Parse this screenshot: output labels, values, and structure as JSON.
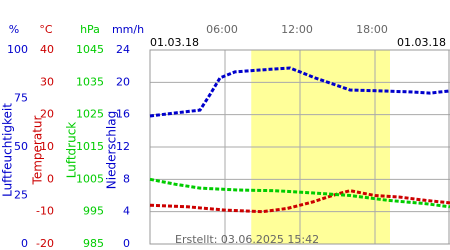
{
  "chart_data": {
    "type": "line",
    "date_left": "01.03.18",
    "date_right": "01.03.18",
    "footer": "Erstellt: 03.06.2025 15:42",
    "xlim": [
      0,
      24
    ],
    "xticks": [
      {
        "value": 6,
        "label": "06:00"
      },
      {
        "value": 12,
        "label": "12:00"
      },
      {
        "value": 18,
        "label": "18:00"
      }
    ],
    "shaded_span": [
      8.1,
      19.2
    ],
    "grid": true,
    "axes": [
      {
        "unit": "%",
        "label": "Luftfeuchtigkeit",
        "color": "#0000cc",
        "ylim": [
          0,
          100
        ],
        "yticks": [
          100,
          75,
          50,
          25,
          0
        ],
        "series": {
          "x": [
            0,
            2,
            4,
            4.8,
            5.6,
            6.8,
            8.8,
            11.2,
            12,
            13.2,
            14.4,
            16,
            18.4,
            20.8,
            22.4,
            24
          ],
          "values": [
            66,
            67.5,
            69,
            77,
            85.6,
            88.7,
            89.7,
            90.7,
            88.7,
            85.6,
            83,
            79.4,
            78.9,
            78.4,
            77.8,
            78.9
          ]
        }
      },
      {
        "unit": "°C",
        "label": "Temperatur",
        "color": "#cc0000",
        "ylim": [
          -20,
          40
        ],
        "yticks": [
          40,
          30,
          20,
          10,
          0,
          -10,
          -20
        ],
        "series": {
          "x": [
            0,
            3,
            6,
            9,
            11,
            13,
            15,
            16,
            18,
            20,
            22,
            24
          ],
          "values": [
            -8,
            -8.5,
            -9.5,
            -10,
            -9,
            -7,
            -4.5,
            -3.5,
            -5,
            -5.5,
            -6.5,
            -7.3
          ]
        }
      },
      {
        "unit": "hPa",
        "label": "Luftdruck",
        "color": "#00cc00",
        "ylim": [
          985,
          1045
        ],
        "yticks": [
          1045,
          1035,
          1025,
          1015,
          1005,
          995,
          985
        ],
        "series": {
          "x": [
            0,
            2,
            4,
            7,
            10,
            13,
            16,
            19,
            22,
            24
          ],
          "values": [
            1005,
            1003.5,
            1002.3,
            1001.7,
            1001.5,
            1000.8,
            1000,
            998.5,
            997.5,
            996.5
          ]
        }
      },
      {
        "unit": "mm/h",
        "label": "Niederschlag",
        "color": "#0000cc",
        "ylim": [
          0,
          24
        ],
        "yticks": [
          24,
          20,
          16,
          12,
          8,
          4,
          0
        ]
      }
    ]
  }
}
